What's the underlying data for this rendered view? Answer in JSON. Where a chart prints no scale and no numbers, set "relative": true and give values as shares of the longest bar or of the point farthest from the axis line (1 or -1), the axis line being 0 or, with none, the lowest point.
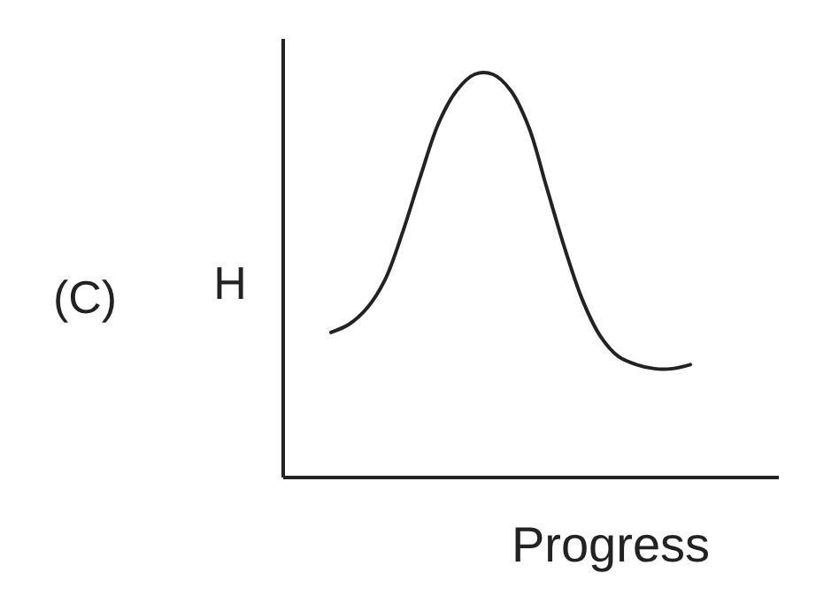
{
  "chart_data": {
    "type": "line",
    "relative": true,
    "ylabel": "H",
    "xlabel": "Progress",
    "annotations": [
      "(C)"
    ],
    "color": "#222222",
    "categories": [
      null,
      null,
      null,
      null,
      null,
      null,
      null,
      null,
      null,
      null,
      null,
      null,
      null,
      null,
      null,
      null,
      null,
      null,
      null,
      null,
      null
    ],
    "values": [
      0.36,
      0.38,
      0.42,
      0.49,
      0.61,
      0.75,
      0.88,
      0.96,
      1,
      1,
      0.96,
      0.87,
      0.72,
      0.57,
      0.44,
      0.35,
      0.3,
      0.28,
      0.27,
      0.27,
      0.28
    ]
  }
}
